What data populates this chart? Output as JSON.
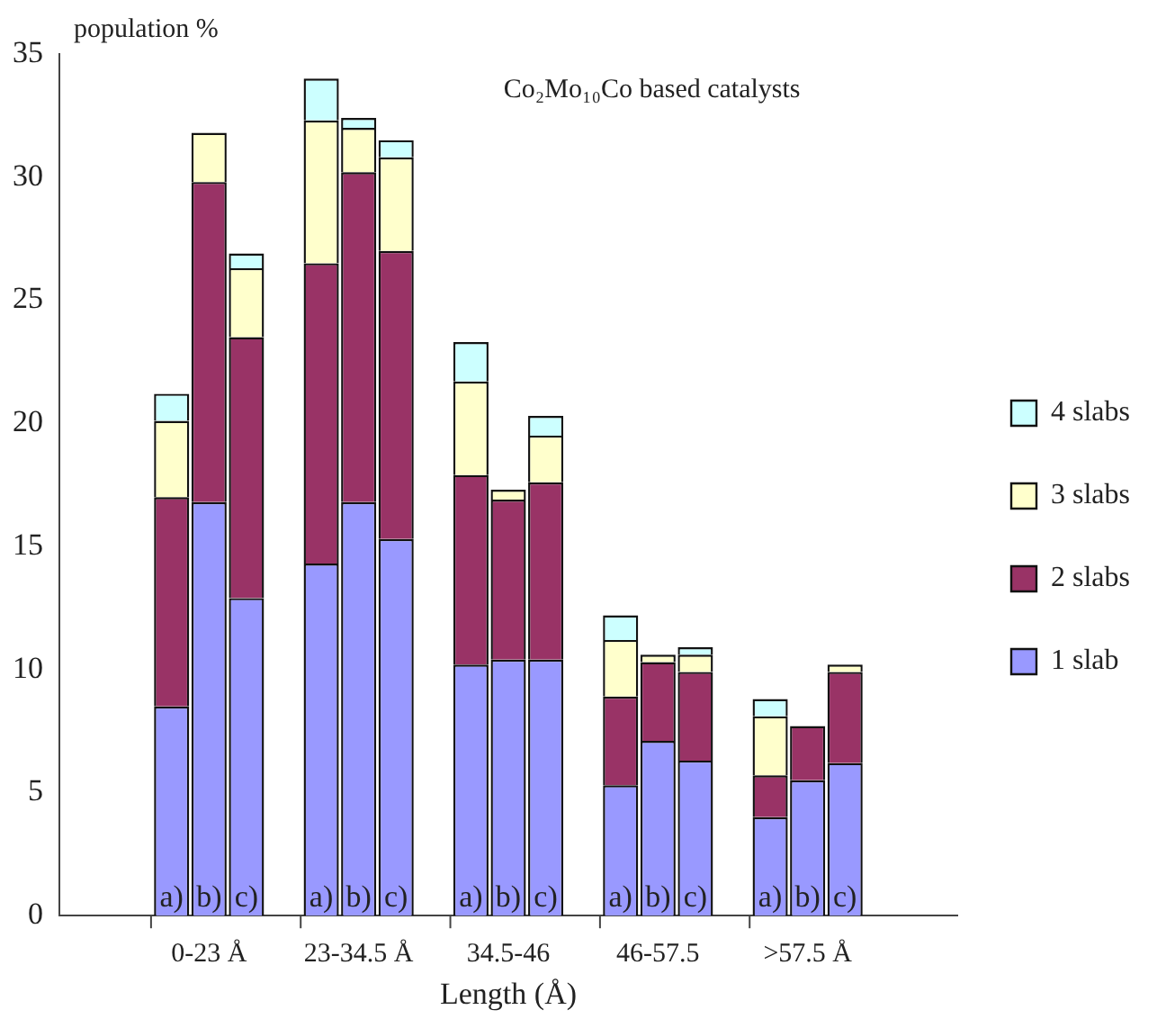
{
  "chart_data": {
    "type": "bar",
    "title": "Co₂Mo₁₀Co based catalysts",
    "xlabel": "Length (Å)",
    "ylabel": "population %",
    "categories": [
      "a)",
      "b)",
      "c)",
      "a)",
      "b)",
      "c)",
      "a)",
      "b)",
      "c)",
      "a)",
      "b)",
      "c)",
      "a)",
      "b)",
      "c)"
    ],
    "stacked": true,
    "ylim": [
      0,
      35
    ],
    "yticks": [
      0,
      5,
      10,
      15,
      20,
      25,
      30,
      35
    ],
    "legend": "right",
    "annotations": [
      "0-23 Å",
      "23-34.5 Å",
      "34.5-46",
      "46-57.5",
      ">57.5 Å"
    ],
    "series": [
      {
        "name": "1 slab",
        "color": "#9999ff",
        "values": [
          8.5,
          16.8,
          12.9,
          14.3,
          16.8,
          15.3,
          10.2,
          10.4,
          10.4,
          5.3,
          7.1,
          6.3,
          4.0,
          5.5,
          6.2
        ]
      },
      {
        "name": "2 slabs",
        "color": "#993366",
        "values": [
          8.5,
          13.0,
          10.6,
          12.2,
          13.4,
          11.7,
          7.7,
          6.5,
          7.2,
          3.6,
          3.2,
          3.6,
          1.7,
          2.2,
          3.7
        ]
      },
      {
        "name": "3 slabs",
        "color": "#ffffcc",
        "values": [
          3.1,
          2.0,
          2.8,
          5.8,
          1.8,
          3.8,
          3.8,
          0.4,
          1.9,
          2.3,
          0.3,
          0.7,
          2.4,
          null,
          0.3
        ]
      },
      {
        "name": "4 slabs",
        "color": "#ccffff",
        "values": [
          1.1,
          0,
          0.6,
          1.7,
          0.4,
          0.7,
          1.6,
          null,
          0.8,
          1.0,
          null,
          0.3,
          0.7,
          null,
          null
        ]
      }
    ]
  }
}
